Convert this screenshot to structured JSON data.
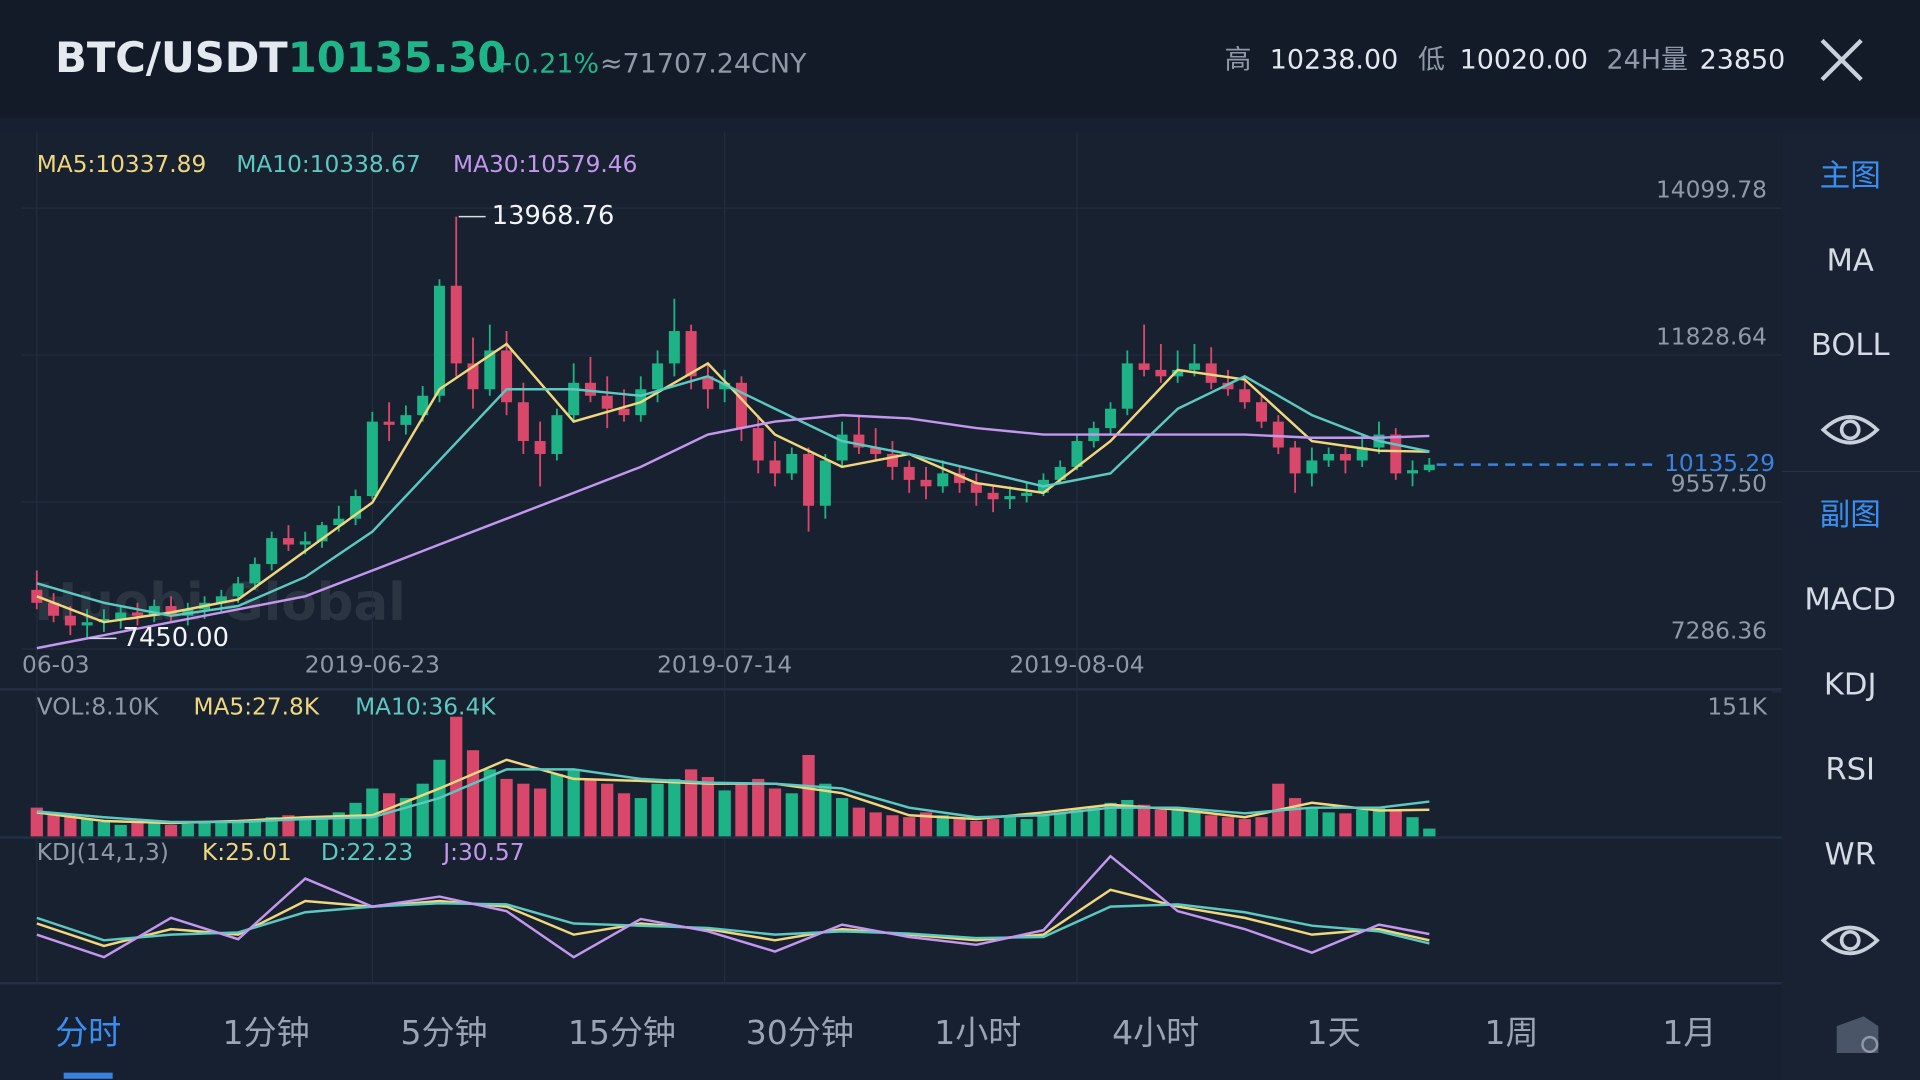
{
  "header": {
    "pair": "BTC/USDT",
    "price": "10135.30",
    "change": "+0.21%",
    "cny": "≈71707.24CNY",
    "high_label": "高",
    "high": "10238.00",
    "low_label": "低",
    "low": "10020.00",
    "vol_label": "24H量",
    "vol": "23850"
  },
  "side_menu": {
    "main_title": "主图",
    "main_items": [
      "MA",
      "BOLL"
    ],
    "sub_title": "副图",
    "sub_items": [
      "MACD",
      "KDJ",
      "RSI",
      "WR"
    ]
  },
  "tabs": [
    "分时",
    "1分钟",
    "5分钟",
    "15分钟",
    "30分钟",
    "1小时",
    "4小时",
    "1天",
    "1周",
    "1月"
  ],
  "chart_data": {
    "type": "candlestick",
    "watermark": "Huobi Global",
    "up_color": "#1db386",
    "down_color": "#d9486a",
    "grid": true,
    "open": [
      8200,
      8000,
      7800,
      7650,
      7700,
      7750,
      7850,
      7800,
      7950,
      7800,
      7900,
      8000,
      8100,
      8300,
      8600,
      9000,
      8900,
      8950,
      9200,
      9300,
      9650,
      10800,
      10750,
      10900,
      11200,
      12900,
      11700,
      11300,
      11900,
      11100,
      10500,
      10300,
      10900,
      11400,
      11200,
      11000,
      10900,
      11300,
      11700,
      12200,
      11500,
      11300,
      11400,
      10700,
      10200,
      10000,
      10300,
      9500,
      10200,
      10600,
      10400,
      10300,
      10100,
      9900,
      9800,
      10000,
      9850,
      9700,
      9600,
      9650,
      9700,
      9900,
      10100,
      10500,
      10700,
      11000,
      11700,
      11600,
      11500,
      11600,
      11700,
      11400,
      11300,
      11100,
      10800,
      10400,
      10000,
      10200,
      10300,
      10200,
      10400,
      10600,
      10000,
      10050
    ],
    "high": [
      8500,
      8150,
      7950,
      7900,
      7900,
      7950,
      8000,
      8050,
      8100,
      8000,
      8100,
      8200,
      8400,
      8700,
      9100,
      9200,
      9100,
      9250,
      9500,
      9750,
      10950,
      11100,
      11050,
      11350,
      13000,
      13968.76,
      12100,
      12300,
      12200,
      11400,
      10800,
      11000,
      11700,
      11800,
      11500,
      11300,
      11500,
      11900,
      12700,
      12300,
      11700,
      11600,
      11500,
      10900,
      10500,
      10400,
      10400,
      10300,
      10800,
      10900,
      10700,
      10500,
      10200,
      10100,
      10200,
      10100,
      10000,
      9800,
      9800,
      9850,
      10000,
      10200,
      10600,
      10800,
      11100,
      11900,
      12300,
      12000,
      11900,
      12000,
      11950,
      11600,
      11500,
      11200,
      10900,
      10500,
      10400,
      10400,
      10400,
      10600,
      10800,
      10700,
      10200,
      10238
    ],
    "low": [
      7900,
      7700,
      7500,
      7450,
      7550,
      7600,
      7650,
      7700,
      7700,
      7650,
      7750,
      7850,
      8000,
      8200,
      8500,
      8800,
      8750,
      8850,
      9100,
      9200,
      9600,
      10500,
      10600,
      10800,
      11100,
      11500,
      11000,
      11200,
      10900,
      10300,
      9800,
      10200,
      10800,
      11100,
      10700,
      10800,
      10800,
      11100,
      11500,
      11300,
      11000,
      11100,
      10500,
      10000,
      9800,
      9900,
      9100,
      9300,
      10100,
      10300,
      10200,
      9900,
      9700,
      9600,
      9700,
      9700,
      9500,
      9400,
      9450,
      9550,
      9650,
      9850,
      10050,
      10400,
      10600,
      10900,
      11500,
      11400,
      11400,
      11500,
      11300,
      11200,
      11000,
      10700,
      10300,
      9700,
      9800,
      10100,
      10000,
      10100,
      10300,
      9900,
      9800,
      10020
    ],
    "close": [
      8000,
      7800,
      7650,
      7700,
      7750,
      7850,
      7800,
      7950,
      7800,
      7900,
      8000,
      8100,
      8300,
      8600,
      9000,
      8900,
      8950,
      9200,
      9300,
      9650,
      10800,
      10750,
      10900,
      11200,
      12900,
      11700,
      11300,
      11900,
      11100,
      10500,
      10300,
      10900,
      11400,
      11200,
      11000,
      10900,
      11300,
      11700,
      12200,
      11500,
      11300,
      11400,
      10700,
      10200,
      10000,
      10300,
      9500,
      10200,
      10600,
      10400,
      10300,
      10100,
      9900,
      9800,
      10000,
      9850,
      9700,
      9600,
      9650,
      9700,
      9900,
      10100,
      10500,
      10700,
      11000,
      11700,
      11600,
      11500,
      11600,
      11700,
      11400,
      11300,
      11100,
      10800,
      10400,
      10000,
      10200,
      10300,
      10200,
      10400,
      10600,
      10000,
      10050,
      10135.29
    ],
    "xlim": [
      -0.88,
      104
    ],
    "xticks": [
      {
        "value": 0,
        "label": "06-03"
      },
      {
        "value": 20,
        "label": "2019-06-23"
      },
      {
        "value": 41,
        "label": "2019-07-14"
      },
      {
        "value": 62,
        "label": "2019-08-04"
      }
    ],
    "ylim": [
      7286.36,
      15140
    ],
    "yticks": [
      7286.36,
      {
        "value": 9557.5,
        "label": "9557.50"
      },
      11828.64,
      14099.78
    ],
    "current_price": 10135.29,
    "current_color": "#3b82e0",
    "extremes": {
      "max": {
        "value": 13968.76,
        "label": "13968.76"
      },
      "min": {
        "value": 7450,
        "label": "7450.00"
      }
    },
    "indicator_x": [
      0,
      4,
      8,
      12,
      16,
      20,
      24,
      28,
      32,
      36,
      40,
      44,
      48,
      52,
      56,
      60,
      64,
      68,
      72,
      76,
      80,
      83
    ],
    "ma": [
      {
        "name": "MA5:10337.89",
        "color": "#f0d77e",
        "values": [
          8100,
          7700,
          7850,
          8050,
          8800,
          9550,
          11300,
          12000,
          10800,
          11100,
          11700,
          10600,
          10100,
          10300,
          9850,
          9700,
          10500,
          11600,
          11450,
          10500,
          10350,
          10337.89
        ]
      },
      {
        "name": "MA10:10338.67",
        "color": "#5cc9c0",
        "values": [
          8300,
          8000,
          7800,
          7950,
          8400,
          9100,
          10200,
          11300,
          11300,
          11200,
          11500,
          11000,
          10500,
          10300,
          10050,
          9800,
          10000,
          11000,
          11500,
          10900,
          10500,
          10338.67
        ]
      },
      {
        "name": "MA30:10579.46",
        "color": "#c497ef",
        "values": [
          7300,
          7500,
          7700,
          7900,
          8100,
          8500,
          8900,
          9300,
          9700,
          10100,
          10600,
          10800,
          10900,
          10850,
          10700,
          10600,
          10600,
          10600,
          10600,
          10550,
          10550,
          10579.46
        ]
      }
    ],
    "volume": {
      "legend": "VOL:8.10K",
      "ylim": [
        0,
        151
      ],
      "yticks": [
        {
          "value": 151,
          "label": "151K"
        }
      ],
      "values": [
        30,
        25,
        20,
        18,
        15,
        12,
        15,
        14,
        12,
        13,
        15,
        14,
        16,
        18,
        20,
        22,
        18,
        20,
        25,
        35,
        50,
        45,
        40,
        55,
        80,
        125,
        90,
        70,
        60,
        55,
        50,
        65,
        70,
        60,
        55,
        45,
        40,
        55,
        60,
        70,
        62,
        48,
        55,
        60,
        50,
        45,
        85,
        55,
        40,
        30,
        25,
        22,
        20,
        25,
        22,
        18,
        16,
        18,
        20,
        18,
        22,
        25,
        28,
        30,
        35,
        38,
        33,
        28,
        30,
        26,
        22,
        20,
        18,
        20,
        55,
        40,
        30,
        25,
        24,
        28,
        30,
        28,
        20,
        8.1
      ],
      "ma": [
        {
          "name": "MA5:27.8K",
          "color": "#f0d77e",
          "values": [
            25,
            16,
            14,
            16,
            20,
            22,
            50,
            80,
            60,
            58,
            55,
            55,
            45,
            22,
            18,
            25,
            33,
            28,
            20,
            35,
            27,
            27.8
          ]
        },
        {
          "name": "MA10:36.4K",
          "color": "#5cc9c0",
          "values": [
            26,
            20,
            15,
            15,
            18,
            20,
            40,
            70,
            70,
            60,
            56,
            55,
            50,
            30,
            20,
            22,
            30,
            30,
            24,
            30,
            30,
            36.4
          ]
        }
      ]
    },
    "kdj": {
      "legend": "KDJ(14,1,3)",
      "ylim": [
        -10,
        110
      ],
      "series": [
        {
          "name": "K:25.01",
          "color": "#f0d77e",
          "values": [
            40,
            20,
            35,
            30,
            60,
            55,
            60,
            55,
            30,
            40,
            35,
            25,
            35,
            30,
            25,
            30,
            70,
            55,
            45,
            30,
            35,
            25.01
          ]
        },
        {
          "name": "D:22.23",
          "color": "#5cc9c0",
          "values": [
            45,
            25,
            30,
            32,
            50,
            55,
            58,
            57,
            40,
            38,
            36,
            30,
            33,
            31,
            27,
            28,
            55,
            57,
            50,
            38,
            33,
            22.23
          ]
        },
        {
          "name": "J:30.57",
          "color": "#c497ef",
          "values": [
            30,
            10,
            45,
            26,
            80,
            55,
            64,
            51,
            10,
            44,
            33,
            15,
            39,
            28,
            21,
            34,
            100,
            51,
            35,
            14,
            39,
            30.57
          ]
        }
      ]
    }
  }
}
